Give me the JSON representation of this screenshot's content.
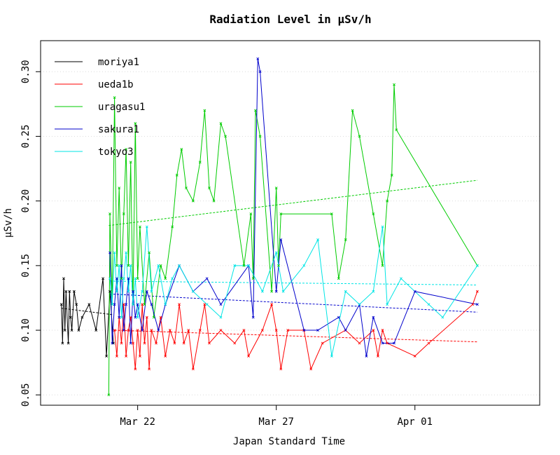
{
  "chart_data": {
    "type": "line",
    "title": "Radiation Level in µSv/h",
    "xlabel": "Japan Standard Time",
    "ylabel": "µSv/h",
    "x_unit": "date",
    "xlim": [
      "2011-03-18T12:00",
      "2011-04-05T12:00"
    ],
    "ylim": [
      0.042,
      0.324
    ],
    "x_ticks": [
      {
        "label": "Mar 22",
        "value": "2011-03-22T00:00"
      },
      {
        "label": "Mar 27",
        "value": "2011-03-27T00:00"
      },
      {
        "label": "Apr 01",
        "value": "2011-04-01T00:00"
      }
    ],
    "y_ticks": [
      {
        "label": "0.05",
        "value": 0.05
      },
      {
        "label": "0.10",
        "value": 0.1
      },
      {
        "label": "0.15",
        "value": 0.15
      },
      {
        "label": "0.20",
        "value": 0.2
      },
      {
        "label": "0.25",
        "value": 0.25
      },
      {
        "label": "0.30",
        "value": 0.3
      }
    ],
    "grid": "horizontal-dotted",
    "legend_position": "top-left",
    "series": [
      {
        "name": "moriya1",
        "color": "#000000",
        "points": [
          [
            "2011-03-19T06:00",
            0.12
          ],
          [
            "2011-03-19T07:00",
            0.09
          ],
          [
            "2011-03-19T08:00",
            0.14
          ],
          [
            "2011-03-19T09:00",
            0.1
          ],
          [
            "2011-03-19T10:00",
            0.13
          ],
          [
            "2011-03-19T12:00",
            0.09
          ],
          [
            "2011-03-19T13:00",
            0.13
          ],
          [
            "2011-03-19T14:00",
            0.11
          ],
          [
            "2011-03-19T15:00",
            0.1
          ],
          [
            "2011-03-19T17:00",
            0.13
          ],
          [
            "2011-03-19T19:00",
            0.12
          ],
          [
            "2011-03-19T21:00",
            0.1
          ],
          [
            "2011-03-20T00:00",
            0.11
          ],
          [
            "2011-03-20T06:00",
            0.12
          ],
          [
            "2011-03-20T12:00",
            0.1
          ],
          [
            "2011-03-20T18:00",
            0.14
          ],
          [
            "2011-03-20T21:00",
            0.08
          ],
          [
            "2011-03-21T00:00",
            0.13
          ],
          [
            "2011-03-21T03:00",
            0.09
          ]
        ],
        "trend": [
          [
            "2011-03-19T06:00",
            0.117
          ],
          [
            "2011-03-21T03:00",
            0.112
          ]
        ]
      },
      {
        "name": "ueda1b",
        "color": "#ff0000",
        "points": [
          [
            "2011-03-21T04:00",
            0.1
          ],
          [
            "2011-03-21T06:00",
            0.08
          ],
          [
            "2011-03-21T08:00",
            0.11
          ],
          [
            "2011-03-21T10:00",
            0.09
          ],
          [
            "2011-03-21T12:00",
            0.12
          ],
          [
            "2011-03-21T14:00",
            0.08
          ],
          [
            "2011-03-21T16:00",
            0.1
          ],
          [
            "2011-03-21T18:00",
            0.11
          ],
          [
            "2011-03-21T20:00",
            0.09
          ],
          [
            "2011-03-21T22:00",
            0.07
          ],
          [
            "2011-03-22T00:00",
            0.1
          ],
          [
            "2011-03-22T02:00",
            0.08
          ],
          [
            "2011-03-22T04:00",
            0.12
          ],
          [
            "2011-03-22T06:00",
            0.09
          ],
          [
            "2011-03-22T08:00",
            0.11
          ],
          [
            "2011-03-22T10:00",
            0.07
          ],
          [
            "2011-03-22T12:00",
            0.1
          ],
          [
            "2011-03-22T16:00",
            0.09
          ],
          [
            "2011-03-22T20:00",
            0.11
          ],
          [
            "2011-03-23T00:00",
            0.08
          ],
          [
            "2011-03-23T04:00",
            0.1
          ],
          [
            "2011-03-23T08:00",
            0.09
          ],
          [
            "2011-03-23T12:00",
            0.12
          ],
          [
            "2011-03-23T16:00",
            0.09
          ],
          [
            "2011-03-23T20:00",
            0.1
          ],
          [
            "2011-03-24T00:00",
            0.07
          ],
          [
            "2011-03-24T06:00",
            0.1
          ],
          [
            "2011-03-24T10:00",
            0.12
          ],
          [
            "2011-03-24T14:00",
            0.09
          ],
          [
            "2011-03-25T00:00",
            0.1
          ],
          [
            "2011-03-25T12:00",
            0.09
          ],
          [
            "2011-03-25T20:00",
            0.1
          ],
          [
            "2011-03-26T00:00",
            0.08
          ],
          [
            "2011-03-26T12:00",
            0.1
          ],
          [
            "2011-03-26T20:00",
            0.12
          ],
          [
            "2011-03-27T00:00",
            0.1
          ],
          [
            "2011-03-27T04:00",
            0.07
          ],
          [
            "2011-03-27T10:00",
            0.1
          ],
          [
            "2011-03-28T00:00",
            0.1
          ],
          [
            "2011-03-28T06:00",
            0.07
          ],
          [
            "2011-03-28T16:00",
            0.09
          ],
          [
            "2011-03-29T12:00",
            0.1
          ],
          [
            "2011-03-30T00:00",
            0.09
          ],
          [
            "2011-03-30T12:00",
            0.1
          ],
          [
            "2011-03-30T16:00",
            0.08
          ],
          [
            "2011-03-30T20:00",
            0.1
          ],
          [
            "2011-03-31T00:00",
            0.09
          ],
          [
            "2011-04-01T00:00",
            0.08
          ],
          [
            "2011-04-01T12:00",
            0.09
          ],
          [
            "2011-04-03T02:00",
            0.12
          ],
          [
            "2011-04-03T06:00",
            0.13
          ]
        ],
        "trend": [
          [
            "2011-03-21T04:00",
            0.1
          ],
          [
            "2011-04-03T06:00",
            0.091
          ]
        ]
      },
      {
        "name": "uragasu1",
        "color": "#00cc00",
        "points": [
          [
            "2011-03-20T23:00",
            0.05
          ],
          [
            "2011-03-21T00:00",
            0.19
          ],
          [
            "2011-03-21T02:00",
            0.12
          ],
          [
            "2011-03-21T04:00",
            0.28
          ],
          [
            "2011-03-21T06:00",
            0.15
          ],
          [
            "2011-03-21T08:00",
            0.21
          ],
          [
            "2011-03-21T10:00",
            0.14
          ],
          [
            "2011-03-21T12:00",
            0.19
          ],
          [
            "2011-03-21T14:00",
            0.24
          ],
          [
            "2011-03-21T16:00",
            0.15
          ],
          [
            "2011-03-21T18:00",
            0.23
          ],
          [
            "2011-03-21T20:00",
            0.12
          ],
          [
            "2011-03-21T22:00",
            0.26
          ],
          [
            "2011-03-22T00:00",
            0.14
          ],
          [
            "2011-03-22T02:00",
            0.18
          ],
          [
            "2011-03-22T06:00",
            0.12
          ],
          [
            "2011-03-22T10:00",
            0.16
          ],
          [
            "2011-03-22T14:00",
            0.11
          ],
          [
            "2011-03-22T20:00",
            0.15
          ],
          [
            "2011-03-23T00:00",
            0.14
          ],
          [
            "2011-03-23T06:00",
            0.18
          ],
          [
            "2011-03-23T10:00",
            0.22
          ],
          [
            "2011-03-23T14:00",
            0.24
          ],
          [
            "2011-03-23T18:00",
            0.21
          ],
          [
            "2011-03-24T00:00",
            0.2
          ],
          [
            "2011-03-24T06:00",
            0.23
          ],
          [
            "2011-03-24T10:00",
            0.27
          ],
          [
            "2011-03-24T14:00",
            0.21
          ],
          [
            "2011-03-24T18:00",
            0.2
          ],
          [
            "2011-03-25T00:00",
            0.26
          ],
          [
            "2011-03-25T04:00",
            0.25
          ],
          [
            "2011-03-25T20:00",
            0.15
          ],
          [
            "2011-03-26T02:00",
            0.19
          ],
          [
            "2011-03-26T04:00",
            0.14
          ],
          [
            "2011-03-26T06:00",
            0.27
          ],
          [
            "2011-03-26T10:00",
            0.25
          ],
          [
            "2011-03-26T20:00",
            0.13
          ],
          [
            "2011-03-27T00:00",
            0.21
          ],
          [
            "2011-03-27T02:00",
            0.15
          ],
          [
            "2011-03-27T04:00",
            0.19
          ],
          [
            "2011-03-29T00:00",
            0.19
          ],
          [
            "2011-03-29T06:00",
            0.14
          ],
          [
            "2011-03-29T12:00",
            0.17
          ],
          [
            "2011-03-29T18:00",
            0.27
          ],
          [
            "2011-03-30T00:00",
            0.25
          ],
          [
            "2011-03-30T12:00",
            0.19
          ],
          [
            "2011-03-30T20:00",
            0.15
          ],
          [
            "2011-03-31T00:00",
            0.2
          ],
          [
            "2011-03-31T04:00",
            0.22
          ],
          [
            "2011-03-31T06:00",
            0.29
          ],
          [
            "2011-03-31T08:00",
            0.255
          ],
          [
            "2011-04-03T06:00",
            0.15
          ]
        ],
        "trend": [
          [
            "2011-03-20T23:00",
            0.181
          ],
          [
            "2011-04-03T06:00",
            0.216
          ]
        ]
      },
      {
        "name": "sakura1",
        "color": "#0000cc",
        "points": [
          [
            "2011-03-21T00:00",
            0.16
          ],
          [
            "2011-03-21T02:00",
            0.09
          ],
          [
            "2011-03-21T04:00",
            0.12
          ],
          [
            "2011-03-21T06:00",
            0.14
          ],
          [
            "2011-03-21T08:00",
            0.11
          ],
          [
            "2011-03-21T10:00",
            0.15
          ],
          [
            "2011-03-21T12:00",
            0.1
          ],
          [
            "2011-03-21T14:00",
            0.12
          ],
          [
            "2011-03-21T16:00",
            0.14
          ],
          [
            "2011-03-21T18:00",
            0.09
          ],
          [
            "2011-03-21T20:00",
            0.13
          ],
          [
            "2011-03-21T22:00",
            0.11
          ],
          [
            "2011-03-22T00:00",
            0.12
          ],
          [
            "2011-03-22T04:00",
            0.1
          ],
          [
            "2011-03-22T08:00",
            0.13
          ],
          [
            "2011-03-22T12:00",
            0.12
          ],
          [
            "2011-03-22T18:00",
            0.1
          ],
          [
            "2011-03-23T00:00",
            0.12
          ],
          [
            "2011-03-23T12:00",
            0.15
          ],
          [
            "2011-03-24T00:00",
            0.13
          ],
          [
            "2011-03-24T12:00",
            0.14
          ],
          [
            "2011-03-25T00:00",
            0.12
          ],
          [
            "2011-03-26T00:00",
            0.15
          ],
          [
            "2011-03-26T04:00",
            0.11
          ],
          [
            "2011-03-26T08:00",
            0.31
          ],
          [
            "2011-03-26T10:00",
            0.3
          ],
          [
            "2011-03-27T00:00",
            0.13
          ],
          [
            "2011-03-27T04:00",
            0.17
          ],
          [
            "2011-03-28T00:00",
            0.1
          ],
          [
            "2011-03-28T12:00",
            0.1
          ],
          [
            "2011-03-29T06:00",
            0.11
          ],
          [
            "2011-03-29T12:00",
            0.1
          ],
          [
            "2011-03-30T00:00",
            0.12
          ],
          [
            "2011-03-30T06:00",
            0.08
          ],
          [
            "2011-03-30T12:00",
            0.11
          ],
          [
            "2011-03-30T20:00",
            0.09
          ],
          [
            "2011-03-31T06:00",
            0.09
          ],
          [
            "2011-04-01T00:00",
            0.13
          ],
          [
            "2011-04-03T06:00",
            0.12
          ]
        ],
        "trend": [
          [
            "2011-03-21T00:00",
            0.128
          ],
          [
            "2011-04-03T06:00",
            0.114
          ]
        ]
      },
      {
        "name": "tokyo3",
        "color": "#00e5e5",
        "points": [
          [
            "2011-03-21T00:00",
            0.14
          ],
          [
            "2011-03-21T02:00",
            0.12
          ],
          [
            "2011-03-21T04:00",
            0.16
          ],
          [
            "2011-03-21T06:00",
            0.13
          ],
          [
            "2011-03-21T08:00",
            0.15
          ],
          [
            "2011-03-21T10:00",
            0.11
          ],
          [
            "2011-03-21T12:00",
            0.14
          ],
          [
            "2011-03-21T14:00",
            0.16
          ],
          [
            "2011-03-21T16:00",
            0.13
          ],
          [
            "2011-03-21T18:00",
            0.15
          ],
          [
            "2011-03-21T20:00",
            0.12
          ],
          [
            "2011-03-21T22:00",
            0.14
          ],
          [
            "2011-03-22T00:00",
            0.11
          ],
          [
            "2011-03-22T04:00",
            0.13
          ],
          [
            "2011-03-22T08:00",
            0.18
          ],
          [
            "2011-03-22T12:00",
            0.13
          ],
          [
            "2011-03-22T18:00",
            0.15
          ],
          [
            "2011-03-23T00:00",
            0.12
          ],
          [
            "2011-03-23T06:00",
            0.14
          ],
          [
            "2011-03-23T12:00",
            0.15
          ],
          [
            "2011-03-24T00:00",
            0.13
          ],
          [
            "2011-03-24T12:00",
            0.12
          ],
          [
            "2011-03-25T00:00",
            0.11
          ],
          [
            "2011-03-25T12:00",
            0.15
          ],
          [
            "2011-03-26T00:00",
            0.15
          ],
          [
            "2011-03-26T12:00",
            0.13
          ],
          [
            "2011-03-27T00:00",
            0.16
          ],
          [
            "2011-03-27T06:00",
            0.13
          ],
          [
            "2011-03-28T00:00",
            0.15
          ],
          [
            "2011-03-28T12:00",
            0.17
          ],
          [
            "2011-03-29T00:00",
            0.08
          ],
          [
            "2011-03-29T12:00",
            0.13
          ],
          [
            "2011-03-30T00:00",
            0.12
          ],
          [
            "2011-03-30T12:00",
            0.13
          ],
          [
            "2011-03-30T20:00",
            0.18
          ],
          [
            "2011-03-31T00:00",
            0.12
          ],
          [
            "2011-03-31T12:00",
            0.14
          ],
          [
            "2011-04-01T12:00",
            0.12
          ],
          [
            "2011-04-02T00:00",
            0.11
          ],
          [
            "2011-04-03T06:00",
            0.15
          ]
        ],
        "trend": [
          [
            "2011-03-21T00:00",
            0.138
          ],
          [
            "2011-04-03T06:00",
            0.135
          ]
        ]
      }
    ]
  }
}
